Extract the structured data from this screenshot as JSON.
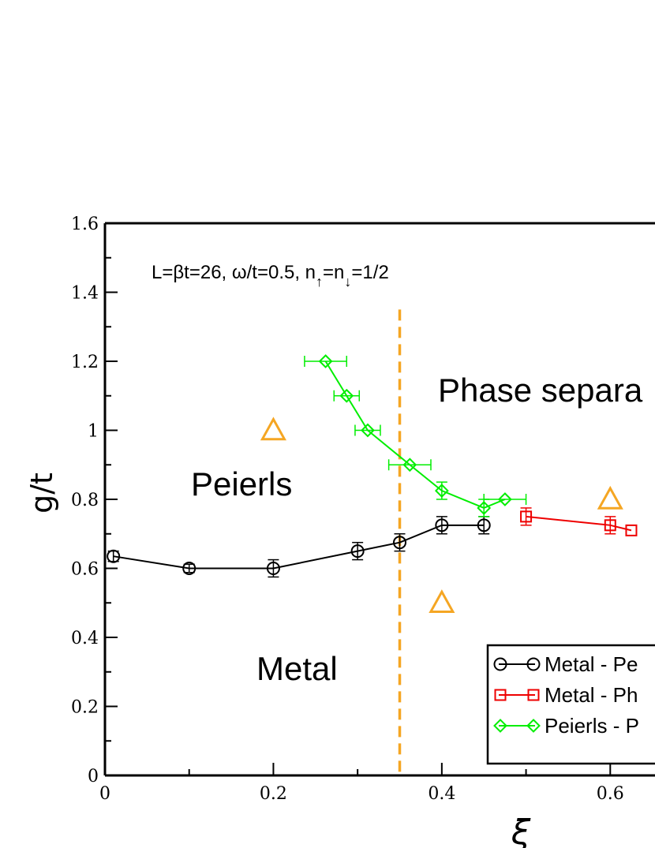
{
  "chart_data": {
    "type": "line",
    "title": "",
    "xlabel": "ξ",
    "ylabel": "g/t",
    "xlim": [
      0,
      0.625
    ],
    "ylim": [
      0,
      1.6
    ],
    "x_ticks": [
      "0",
      "0.2",
      "0.4",
      "0.6"
    ],
    "y_ticks": [
      "0",
      "0.2",
      "0.4",
      "0.6",
      "0.8",
      "1",
      "1.2",
      "1.4",
      "1.6"
    ],
    "grid": false,
    "annotation": {
      "main": "L=βt=26, ω/t=0.5, n",
      "sub1": "↑",
      "mid": "=n",
      "sub2": "↓",
      "tail": "=1/2"
    },
    "region_labels": [
      "Peierls",
      "Metal",
      "Phase separa"
    ],
    "legend": {
      "position": "bottom-right",
      "entries": [
        "Metal - Pe",
        "Metal - Ph",
        "Peierls - P"
      ]
    },
    "vertical_line": {
      "x": 0.35,
      "ymax": 1.35,
      "color": "#f5a623",
      "style": "dashed"
    },
    "series": [
      {
        "name": "Metal - Pe",
        "color": "#000000",
        "marker": "circle",
        "points": [
          {
            "x": 0.01,
            "y": 0.635,
            "yerr": 0.015
          },
          {
            "x": 0.1,
            "y": 0.6,
            "yerr": 0.012
          },
          {
            "x": 0.2,
            "y": 0.6,
            "yerr": 0.025
          },
          {
            "x": 0.3,
            "y": 0.65,
            "yerr": 0.025
          },
          {
            "x": 0.35,
            "y": 0.675,
            "yerr": 0.025
          },
          {
            "x": 0.4,
            "y": 0.725,
            "yerr": 0.025
          },
          {
            "x": 0.45,
            "y": 0.725,
            "yerr": 0.025
          }
        ]
      },
      {
        "name": "Metal - Ph",
        "color": "#ee0000",
        "marker": "square",
        "points": [
          {
            "x": 0.5,
            "y": 0.75,
            "yerr": 0.025
          },
          {
            "x": 0.6,
            "y": 0.725,
            "yerr": 0.025
          },
          {
            "x": 0.625,
            "y": 0.71,
            "yerr": 0
          }
        ]
      },
      {
        "name": "Peierls - P",
        "color": "#00ee00",
        "marker": "diamond",
        "points": [
          {
            "x": 0.262,
            "y": 1.2,
            "xerr": 0.025,
            "yerr": 0
          },
          {
            "x": 0.287,
            "y": 1.1,
            "xerr": 0.015,
            "yerr": 0
          },
          {
            "x": 0.312,
            "y": 1.0,
            "xerr": 0.015,
            "yerr": 0
          },
          {
            "x": 0.362,
            "y": 0.9,
            "xerr": 0.025,
            "yerr": 0
          },
          {
            "x": 0.4,
            "y": 0.825,
            "xerr": 0,
            "yerr": 0.025
          },
          {
            "x": 0.45,
            "y": 0.775,
            "xerr": 0,
            "yerr": 0.025
          },
          {
            "x": 0.475,
            "y": 0.8,
            "xerr": 0.025,
            "yerr": 0
          }
        ]
      }
    ],
    "triangles": {
      "color": "#f5a623",
      "points": [
        {
          "x": 0.2,
          "y": 1.0
        },
        {
          "x": 0.4,
          "y": 0.5
        },
        {
          "x": 0.6,
          "y": 0.8
        }
      ]
    }
  }
}
